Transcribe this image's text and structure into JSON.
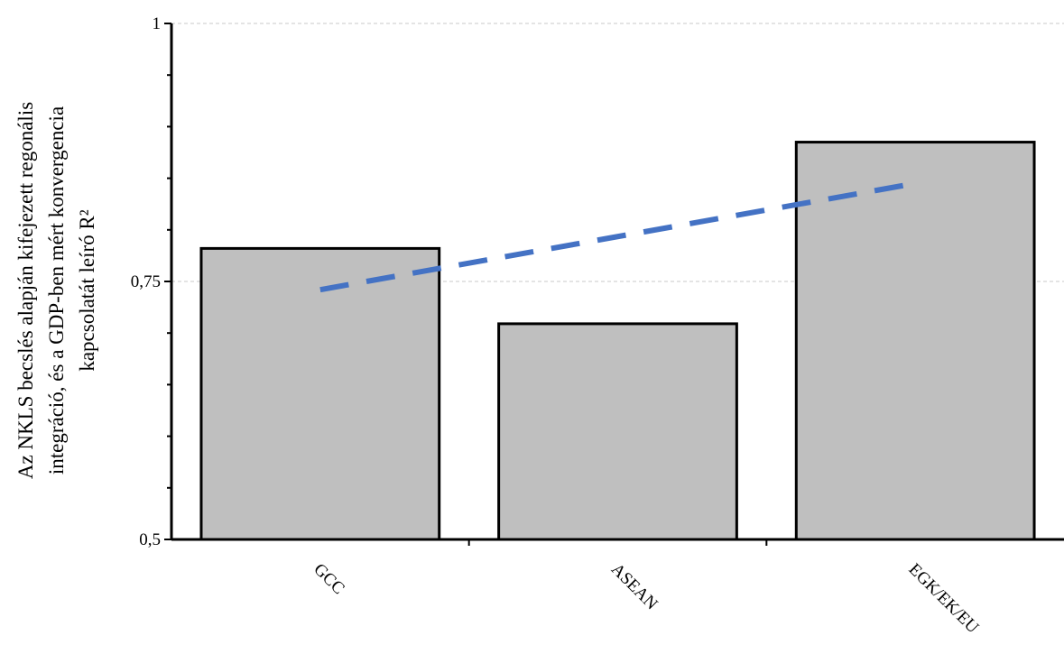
{
  "chart_data": {
    "type": "bar",
    "title": "",
    "xlabel": "",
    "ylabel_lines": [
      "Az NKLS becslés alapján kifejezett regonális",
      "integráció, és a GDP-ben mért konvergencia",
      "kapcsolatát leíró R²"
    ],
    "categories": [
      "GCC",
      "ASEAN",
      "EGK/EK/EU"
    ],
    "values": [
      0.782,
      0.709,
      0.885
    ],
    "ylim": [
      0.5,
      1
    ],
    "y_ticks": [
      {
        "value": 0.5,
        "label": "0,5"
      },
      {
        "value": 0.75,
        "label": "0,75"
      },
      {
        "value": 1,
        "label": "1"
      }
    ],
    "y_minor_ticks": [
      0.55,
      0.6,
      0.65,
      0.7,
      0.8,
      0.85,
      0.9,
      0.95
    ],
    "grid": "horizontal dashed at major ticks",
    "bar_color": "#bfbfbf",
    "bar_edge_color": "#000000",
    "trendline": {
      "type": "linear",
      "style": "dashed",
      "color": "#4472c4",
      "x_range": [
        0,
        2
      ],
      "y_start": 0.742,
      "y_end": 0.845
    }
  }
}
